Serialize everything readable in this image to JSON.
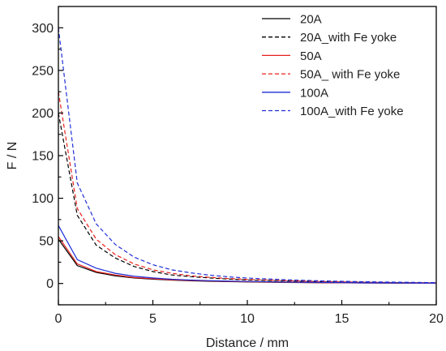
{
  "chart_data": {
    "type": "line",
    "xlabel": "Distance / mm",
    "ylabel": "F / N",
    "xlim": [
      0,
      20
    ],
    "ylim": [
      -25,
      325
    ],
    "xticks": [
      0,
      5,
      10,
      15,
      20
    ],
    "yticks": [
      0,
      50,
      100,
      150,
      200,
      250,
      300
    ],
    "grid": false,
    "legend_position": "top-right",
    "x": [
      0,
      1,
      2,
      3,
      4,
      5,
      6,
      7,
      8,
      9,
      10,
      12,
      14,
      16,
      18,
      20
    ],
    "series": [
      {
        "name": "20A",
        "color": "#000000",
        "dash": "solid",
        "values": [
          52,
          21,
          13,
          9,
          6.5,
          5,
          4,
          3.2,
          2.6,
          2.2,
          1.9,
          1.3,
          0.9,
          0.6,
          0.4,
          0.3
        ]
      },
      {
        "name": "20A_with Fe yoke",
        "color": "#000000",
        "dash": "dashed",
        "values": [
          200,
          80,
          45,
          30,
          20,
          14,
          10,
          8,
          6.5,
          5.2,
          4.2,
          3,
          2,
          1.4,
          1,
          0.7
        ]
      },
      {
        "name": "50A",
        "color": "#e8201a",
        "dash": "solid",
        "values": [
          55,
          23,
          14,
          10,
          7,
          5.5,
          4.3,
          3.5,
          2.9,
          2.4,
          2.1,
          1.5,
          1,
          0.7,
          0.5,
          0.3
        ]
      },
      {
        "name": "50A_ with Fe yoke",
        "color": "#e8201a",
        "dash": "dashed",
        "values": [
          225,
          88,
          52,
          34,
          23,
          16,
          12,
          9,
          7.2,
          5.8,
          4.8,
          3.4,
          2.3,
          1.6,
          1.1,
          0.8
        ]
      },
      {
        "name": "100A",
        "color": "#1f2fd6",
        "dash": "solid",
        "values": [
          68,
          28,
          18,
          12,
          8.5,
          6.5,
          5,
          4,
          3.3,
          2.8,
          2.4,
          1.7,
          1.2,
          0.8,
          0.6,
          0.4
        ]
      },
      {
        "name": "100A_with Fe yoke",
        "color": "#1f2fd6",
        "dash": "dashed",
        "values": [
          300,
          118,
          70,
          46,
          31,
          22,
          16,
          12.5,
          9.8,
          7.8,
          6.4,
          4.4,
          3,
          2.1,
          1.5,
          1
        ]
      }
    ]
  }
}
